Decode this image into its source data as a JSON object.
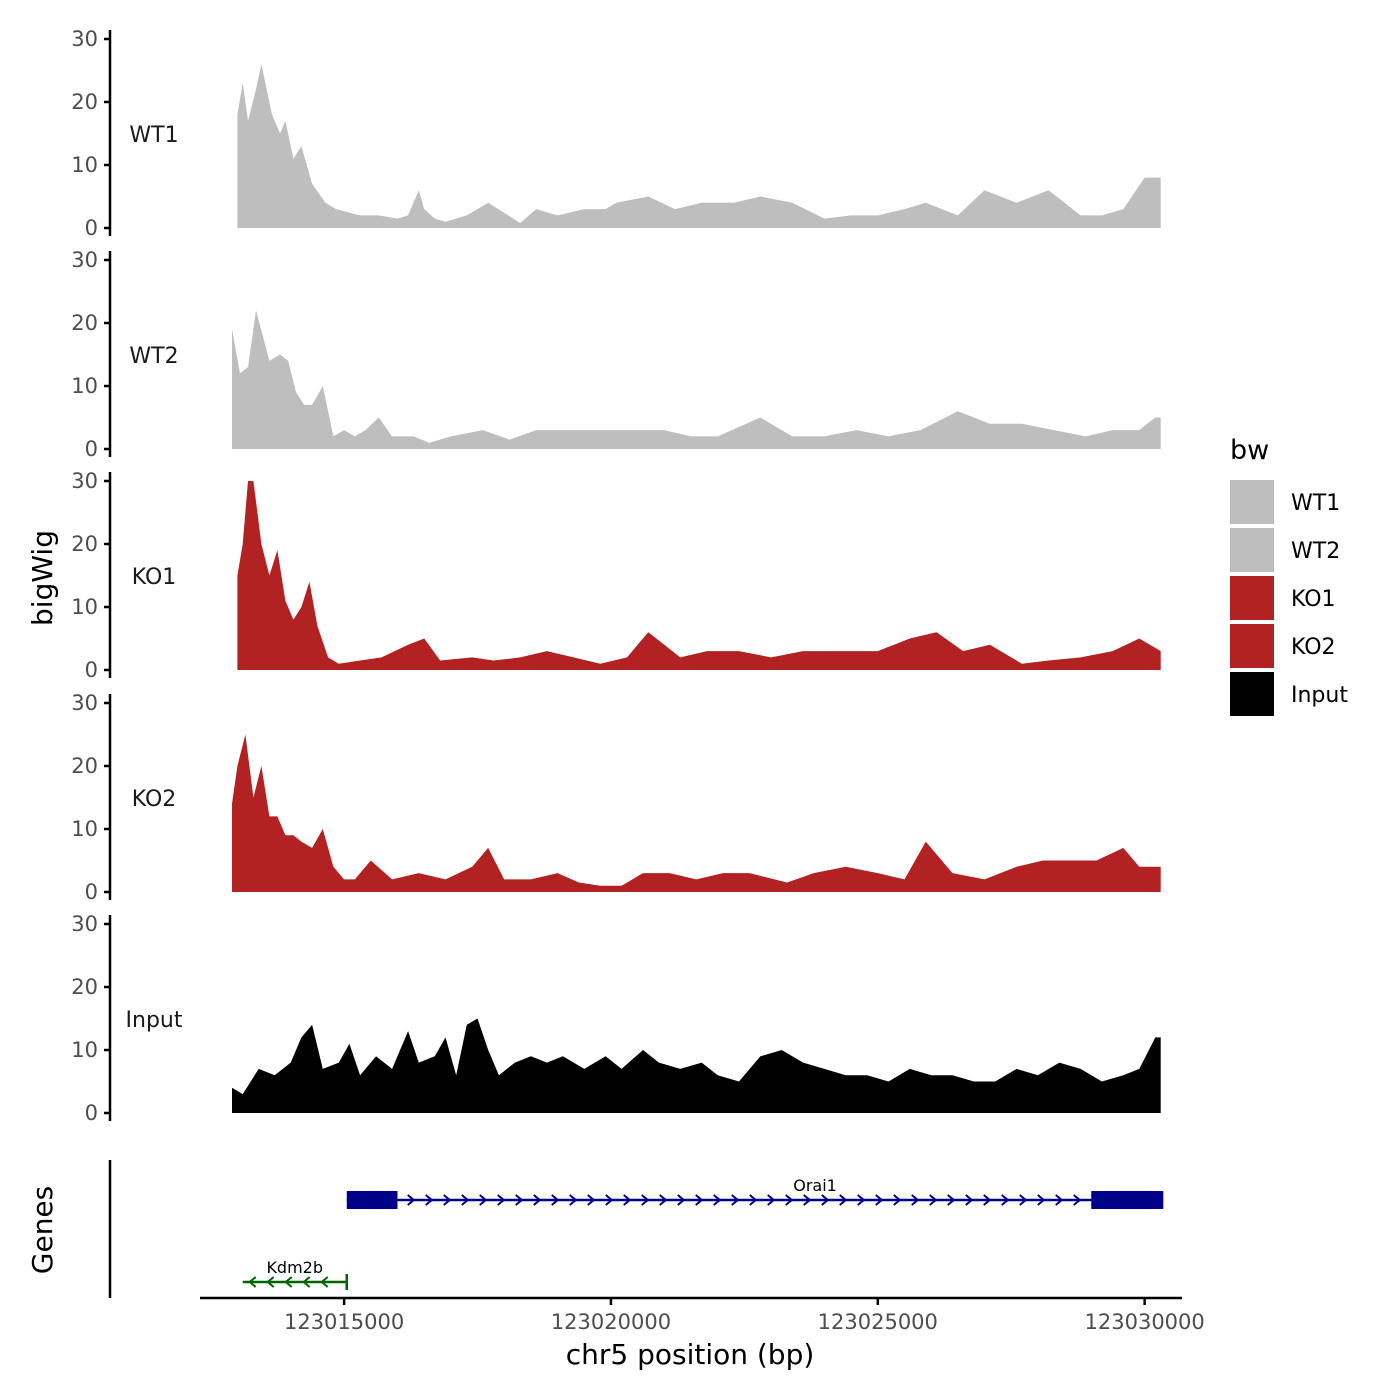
{
  "chart_data": {
    "type": "area",
    "ylabel": "bigWig",
    "xlabel": "chr5 position (bp)",
    "genes_label": "Genes",
    "legend_title": "bw",
    "ylim": [
      0,
      30
    ],
    "y_ticks": [
      "0",
      "10",
      "20",
      "30"
    ],
    "xlim": [
      123012300,
      123030700
    ],
    "x_ticks": [
      {
        "value": 123015000,
        "label": "123015000"
      },
      {
        "value": 123020000,
        "label": "123020000"
      },
      {
        "value": 123025000,
        "label": "123025000"
      },
      {
        "value": 123030000,
        "label": "123030000"
      }
    ],
    "series": [
      {
        "name": "WT1",
        "color": "#bebebe",
        "start": 123013000,
        "end": 123030300,
        "peaks": [
          [
            123013000,
            18
          ],
          [
            123013100,
            23
          ],
          [
            123013200,
            17
          ],
          [
            123013350,
            22
          ],
          [
            123013450,
            26
          ],
          [
            123013650,
            18
          ],
          [
            123013800,
            15
          ],
          [
            123013900,
            17
          ],
          [
            123014050,
            11
          ],
          [
            123014200,
            13
          ],
          [
            123014400,
            7
          ],
          [
            123014650,
            4
          ],
          [
            123014850,
            3
          ],
          [
            123015300,
            2
          ],
          [
            123015650,
            2
          ],
          [
            123016000,
            1.5
          ],
          [
            123016200,
            2
          ],
          [
            123016400,
            6
          ],
          [
            123016500,
            3
          ],
          [
            123016700,
            1.5
          ],
          [
            123016900,
            1
          ],
          [
            123017300,
            2
          ],
          [
            123017700,
            4
          ],
          [
            123018300,
            0.8
          ],
          [
            123018600,
            3
          ],
          [
            123019000,
            2
          ],
          [
            123019500,
            3
          ],
          [
            123019900,
            3
          ],
          [
            123020100,
            4
          ],
          [
            123020700,
            5
          ],
          [
            123021200,
            3
          ],
          [
            123021700,
            4
          ],
          [
            123022300,
            4
          ],
          [
            123022800,
            5
          ],
          [
            123023400,
            4
          ],
          [
            123024000,
            1.5
          ],
          [
            123024500,
            2
          ],
          [
            123025000,
            2
          ],
          [
            123025500,
            3
          ],
          [
            123025900,
            4
          ],
          [
            123026500,
            2
          ],
          [
            123027000,
            6
          ],
          [
            123027600,
            4
          ],
          [
            123028200,
            6
          ],
          [
            123028800,
            2
          ],
          [
            123029200,
            2
          ],
          [
            123029600,
            3
          ],
          [
            123030000,
            8
          ]
        ]
      },
      {
        "name": "WT2",
        "color": "#bebebe",
        "start": 123012900,
        "end": 123030300,
        "peaks": [
          [
            123012900,
            19
          ],
          [
            123013050,
            12
          ],
          [
            123013200,
            13
          ],
          [
            123013350,
            22
          ],
          [
            123013600,
            14
          ],
          [
            123013800,
            15
          ],
          [
            123013950,
            14
          ],
          [
            123014100,
            9
          ],
          [
            123014250,
            7
          ],
          [
            123014400,
            7
          ],
          [
            123014600,
            10
          ],
          [
            123014800,
            2
          ],
          [
            123015000,
            3
          ],
          [
            123015200,
            2
          ],
          [
            123015400,
            3
          ],
          [
            123015650,
            5
          ],
          [
            123015900,
            2
          ],
          [
            123016300,
            2
          ],
          [
            123016600,
            1
          ],
          [
            123017000,
            2
          ],
          [
            123017600,
            3
          ],
          [
            123018100,
            1.5
          ],
          [
            123018600,
            3
          ],
          [
            123019300,
            3
          ],
          [
            123019900,
            3
          ],
          [
            123020400,
            3
          ],
          [
            123021000,
            3
          ],
          [
            123021500,
            2
          ],
          [
            123022000,
            2
          ],
          [
            123022800,
            5
          ],
          [
            123023400,
            2
          ],
          [
            123024000,
            2
          ],
          [
            123024600,
            3
          ],
          [
            123025200,
            2
          ],
          [
            123025800,
            3
          ],
          [
            123026500,
            6
          ],
          [
            123027100,
            4
          ],
          [
            123027700,
            4
          ],
          [
            123028300,
            3
          ],
          [
            123028900,
            2
          ],
          [
            123029400,
            3
          ],
          [
            123029900,
            3
          ],
          [
            123030200,
            5
          ]
        ]
      },
      {
        "name": "KO1",
        "color": "#b22222",
        "start": 123013000,
        "end": 123030300,
        "peaks": [
          [
            123013000,
            15
          ],
          [
            123013100,
            20
          ],
          [
            123013200,
            30
          ],
          [
            123013300,
            30
          ],
          [
            123013450,
            20
          ],
          [
            123013600,
            15
          ],
          [
            123013750,
            19
          ],
          [
            123013900,
            11
          ],
          [
            123014050,
            8
          ],
          [
            123014200,
            10
          ],
          [
            123014350,
            14
          ],
          [
            123014500,
            7
          ],
          [
            123014700,
            2
          ],
          [
            123014900,
            1
          ],
          [
            123015300,
            1.5
          ],
          [
            123015700,
            2
          ],
          [
            123016200,
            4
          ],
          [
            123016500,
            5
          ],
          [
            123016800,
            1.5
          ],
          [
            123017400,
            2
          ],
          [
            123017800,
            1.5
          ],
          [
            123018300,
            2
          ],
          [
            123018800,
            3
          ],
          [
            123019300,
            2
          ],
          [
            123019800,
            1
          ],
          [
            123020300,
            2
          ],
          [
            123020700,
            6
          ],
          [
            123021300,
            2
          ],
          [
            123021800,
            3
          ],
          [
            123022400,
            3
          ],
          [
            123023000,
            2
          ],
          [
            123023600,
            3
          ],
          [
            123024300,
            3
          ],
          [
            123025000,
            3
          ],
          [
            123025600,
            5
          ],
          [
            123026100,
            6
          ],
          [
            123026600,
            3
          ],
          [
            123027100,
            4
          ],
          [
            123027700,
            1
          ],
          [
            123028200,
            1.5
          ],
          [
            123028800,
            2
          ],
          [
            123029400,
            3
          ],
          [
            123029900,
            5
          ],
          [
            123030300,
            3
          ]
        ]
      },
      {
        "name": "KO2",
        "color": "#b22222",
        "start": 123012900,
        "end": 123030300,
        "peaks": [
          [
            123012900,
            14
          ],
          [
            123013000,
            20
          ],
          [
            123013150,
            25
          ],
          [
            123013300,
            15
          ],
          [
            123013450,
            20
          ],
          [
            123013600,
            12
          ],
          [
            123013750,
            12
          ],
          [
            123013900,
            9
          ],
          [
            123014050,
            9
          ],
          [
            123014200,
            8
          ],
          [
            123014400,
            7
          ],
          [
            123014600,
            10
          ],
          [
            123014800,
            4
          ],
          [
            123015000,
            2
          ],
          [
            123015200,
            2
          ],
          [
            123015500,
            5
          ],
          [
            123015900,
            2
          ],
          [
            123016400,
            3
          ],
          [
            123016900,
            2
          ],
          [
            123017400,
            4
          ],
          [
            123017700,
            7
          ],
          [
            123018000,
            2
          ],
          [
            123018500,
            2
          ],
          [
            123019000,
            3
          ],
          [
            123019400,
            1.5
          ],
          [
            123019800,
            1
          ],
          [
            123020200,
            1
          ],
          [
            123020600,
            3
          ],
          [
            123021100,
            3
          ],
          [
            123021600,
            2
          ],
          [
            123022100,
            3
          ],
          [
            123022600,
            3
          ],
          [
            123023300,
            1.5
          ],
          [
            123023800,
            3
          ],
          [
            123024400,
            4
          ],
          [
            123025000,
            3
          ],
          [
            123025500,
            2
          ],
          [
            123025900,
            8
          ],
          [
            123026400,
            3
          ],
          [
            123027000,
            2
          ],
          [
            123027600,
            4
          ],
          [
            123028100,
            5
          ],
          [
            123028600,
            5
          ],
          [
            123029100,
            5
          ],
          [
            123029600,
            7
          ],
          [
            123029900,
            4
          ],
          [
            123030200,
            4
          ]
        ]
      },
      {
        "name": "Input",
        "color": "#000000",
        "start": 123012900,
        "end": 123030300,
        "peaks": [
          [
            123012900,
            4
          ],
          [
            123013100,
            3
          ],
          [
            123013400,
            7
          ],
          [
            123013700,
            6
          ],
          [
            123014000,
            8
          ],
          [
            123014200,
            12
          ],
          [
            123014400,
            14
          ],
          [
            123014600,
            7
          ],
          [
            123014900,
            8
          ],
          [
            123015100,
            11
          ],
          [
            123015300,
            6
          ],
          [
            123015600,
            9
          ],
          [
            123015900,
            7
          ],
          [
            123016200,
            13
          ],
          [
            123016400,
            8
          ],
          [
            123016700,
            9
          ],
          [
            123016900,
            12
          ],
          [
            123017100,
            6
          ],
          [
            123017300,
            14
          ],
          [
            123017500,
            15
          ],
          [
            123017700,
            10
          ],
          [
            123017900,
            6
          ],
          [
            123018200,
            8
          ],
          [
            123018500,
            9
          ],
          [
            123018800,
            8
          ],
          [
            123019100,
            9
          ],
          [
            123019500,
            7
          ],
          [
            123019900,
            9
          ],
          [
            123020200,
            7
          ],
          [
            123020600,
            10
          ],
          [
            123020900,
            8
          ],
          [
            123021300,
            7
          ],
          [
            123021700,
            8
          ],
          [
            123022000,
            6
          ],
          [
            123022400,
            5
          ],
          [
            123022800,
            9
          ],
          [
            123023200,
            10
          ],
          [
            123023600,
            8
          ],
          [
            123024000,
            7
          ],
          [
            123024400,
            6
          ],
          [
            123024800,
            6
          ],
          [
            123025200,
            5
          ],
          [
            123025600,
            7
          ],
          [
            123026000,
            6
          ],
          [
            123026400,
            6
          ],
          [
            123026800,
            5
          ],
          [
            123027200,
            5
          ],
          [
            123027600,
            7
          ],
          [
            123028000,
            6
          ],
          [
            123028400,
            8
          ],
          [
            123028800,
            7
          ],
          [
            123029200,
            5
          ],
          [
            123029600,
            6
          ],
          [
            123029900,
            7
          ],
          [
            123030200,
            12
          ]
        ]
      }
    ],
    "genes": [
      {
        "name": "Orai1",
        "color": "#00008b",
        "strand": "+",
        "row": 1,
        "start": 123015050,
        "end": 123030350,
        "exons": [
          [
            123015050,
            123016000
          ],
          [
            123029000,
            123030350
          ]
        ]
      },
      {
        "name": "Kdm2b",
        "color": "#006400",
        "strand": "-",
        "row": 2,
        "start": 123013100,
        "end": 123015050,
        "exons": []
      }
    ]
  }
}
